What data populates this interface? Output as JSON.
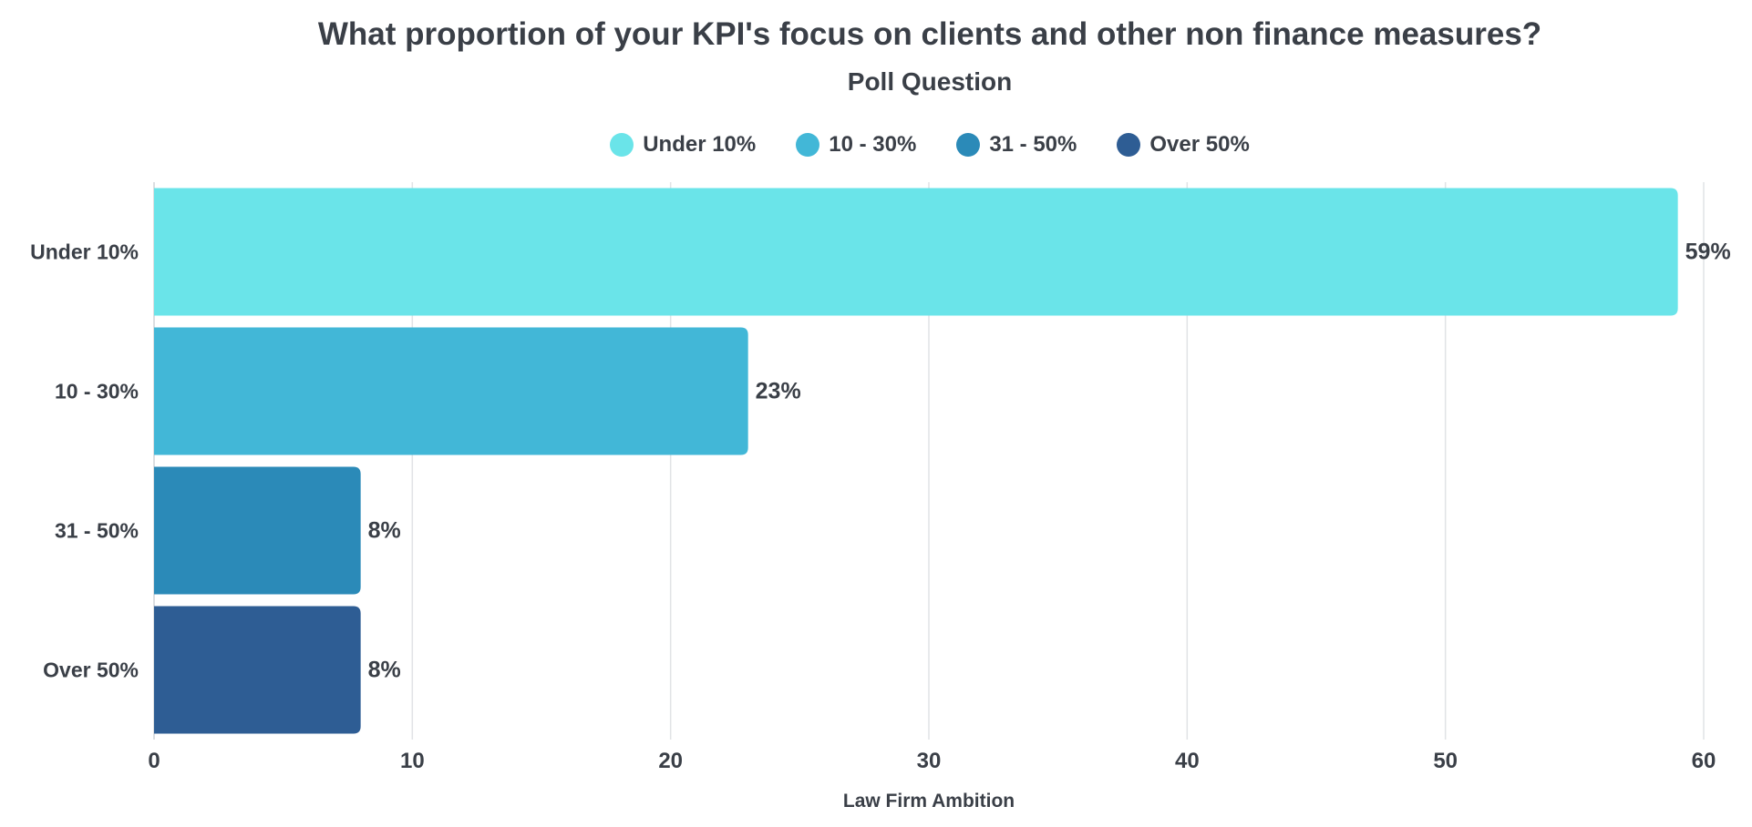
{
  "chart_data": {
    "type": "bar",
    "orientation": "horizontal",
    "title": "What proportion of your KPI's focus on clients and other non finance measures?",
    "subtitle": "Poll Question",
    "xlabel": "Law Firm Ambition",
    "ylabel": "",
    "categories": [
      "Under 10%",
      "10 - 30%",
      "31 - 50%",
      "Over 50%"
    ],
    "values": [
      59,
      23,
      8,
      8
    ],
    "data_labels": [
      "59%",
      "23%",
      "8%",
      "8%"
    ],
    "colors": [
      "#6ae4e9",
      "#42b7d7",
      "#2b8ab8",
      "#2e5d94"
    ],
    "xlim": [
      0,
      60
    ],
    "xticks": [
      0,
      10,
      20,
      30,
      40,
      50,
      60
    ],
    "grid": true,
    "legend_position": "top-center",
    "legend": [
      {
        "label": "Under 10%",
        "color": "#6ae4e9"
      },
      {
        "label": "10 - 30%",
        "color": "#42b7d7"
      },
      {
        "label": "31 - 50%",
        "color": "#2b8ab8"
      },
      {
        "label": "Over 50%",
        "color": "#2e5d94"
      }
    ]
  }
}
